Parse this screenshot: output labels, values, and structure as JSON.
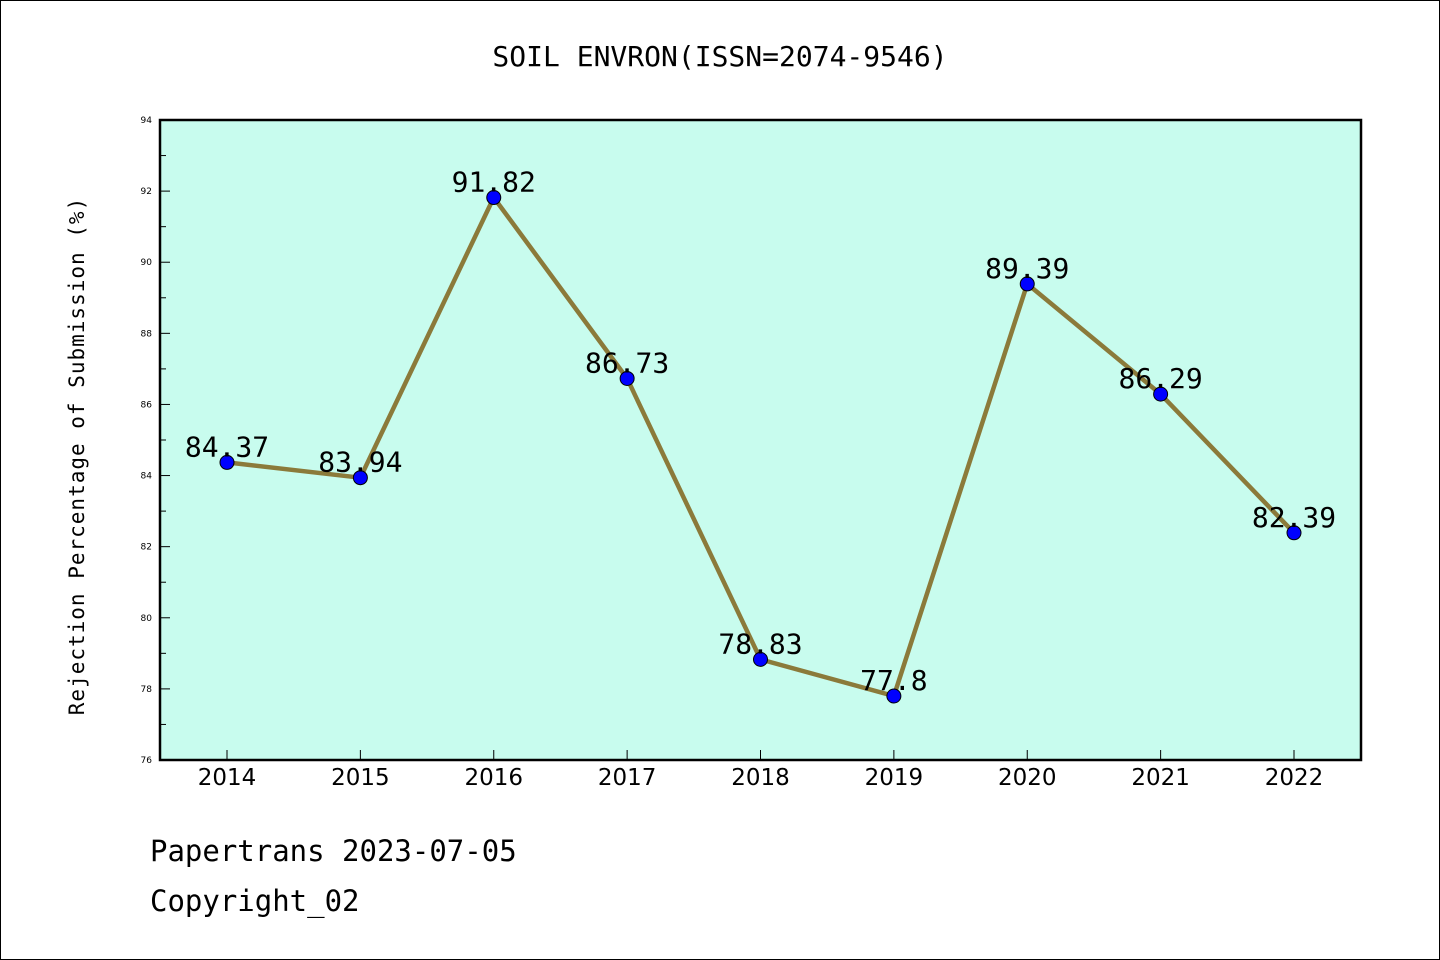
{
  "chart_data": {
    "type": "line",
    "title": "SOIL ENVRON(ISSN=2074-9546)",
    "xlabel": "",
    "ylabel": "Rejection Percentage of Submission (%)",
    "categories": [
      "2014",
      "2015",
      "2016",
      "2017",
      "2018",
      "2019",
      "2020",
      "2021",
      "2022"
    ],
    "values": [
      84.37,
      83.94,
      91.82,
      86.73,
      78.83,
      77.8,
      89.39,
      86.29,
      82.39
    ],
    "data_labels": [
      "84.37",
      "83.94",
      "91.82",
      "86.73",
      "78.83",
      "77.8",
      "89.39",
      "86.29",
      "82.39"
    ],
    "ylim": [
      76,
      94
    ],
    "y_ticks": [
      "76",
      "78",
      "80",
      "82",
      "84",
      "86",
      "88",
      "90",
      "92",
      "94"
    ],
    "grid": false,
    "legend": "none",
    "colors": {
      "plot_background": "#c8fcee",
      "line": "#8b7a3a",
      "marker": "#0000ff",
      "axes": "#000000"
    }
  },
  "footer": {
    "line1": "Papertrans 2023-07-05",
    "line2": "Copyright_02"
  }
}
